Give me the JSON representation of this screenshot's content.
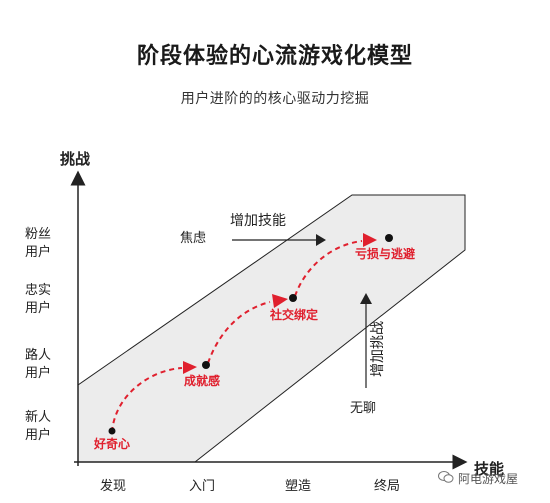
{
  "title": "阶段体验的心流游戏化模型",
  "subtitle": "用户进阶的的核心驱动力挖掘",
  "axes": {
    "y_title": "挑战",
    "x_title": "技能",
    "y_ticks": [
      {
        "line1": "粉丝",
        "line2": "用户"
      },
      {
        "line1": "忠实",
        "line2": "用户"
      },
      {
        "line1": "路人",
        "line2": "用户"
      },
      {
        "line1": "新人",
        "line2": "用户"
      }
    ],
    "x_ticks": [
      "发现",
      "入门",
      "塑造",
      "终局"
    ]
  },
  "zones": {
    "anxiety": "焦虑",
    "boredom": "无聊",
    "add_skill": "增加技能",
    "add_challenge": "增加挑战"
  },
  "stages": [
    "好奇心",
    "成就感",
    "社交绑定",
    "亏损与逃避"
  ],
  "watermark": "阿电游戏屋",
  "colors": {
    "band": "#ececec",
    "accent": "#e0202e",
    "axis": "#222222"
  }
}
